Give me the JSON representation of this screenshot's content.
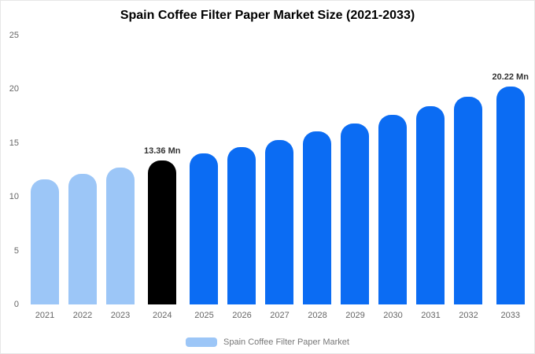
{
  "chart_data": {
    "type": "bar",
    "title": "Spain Coffee Filter Paper Market Size (2021-2033)",
    "categories": [
      "2021",
      "2022",
      "2023",
      "2024",
      "2025",
      "2026",
      "2027",
      "2028",
      "2029",
      "2030",
      "2031",
      "2032",
      "2033"
    ],
    "values": [
      11.6,
      12.15,
      12.7,
      13.36,
      14.0,
      14.65,
      15.3,
      16.05,
      16.8,
      17.6,
      18.4,
      19.3,
      20.22
    ],
    "point_colors": [
      "light",
      "light",
      "light",
      "highlight",
      "primary",
      "primary",
      "primary",
      "primary",
      "primary",
      "primary",
      "primary",
      "primary",
      "primary"
    ],
    "colors": {
      "light": "#9cc6f7",
      "highlight": "#000000",
      "primary": "#0b6cf3"
    },
    "annotations": [
      {
        "category": "2024",
        "text": "13.36 Mn"
      },
      {
        "category": "2033",
        "text": "20.22 Mn"
      }
    ],
    "xlabel": "",
    "ylabel": "",
    "ylim": [
      0,
      25
    ],
    "yticks": [
      0,
      5,
      10,
      15,
      20,
      25
    ],
    "grid": false,
    "legend_position": "bottom",
    "legend": [
      {
        "label": "Spain Coffee Filter Paper Market",
        "color_key": "light"
      }
    ]
  }
}
